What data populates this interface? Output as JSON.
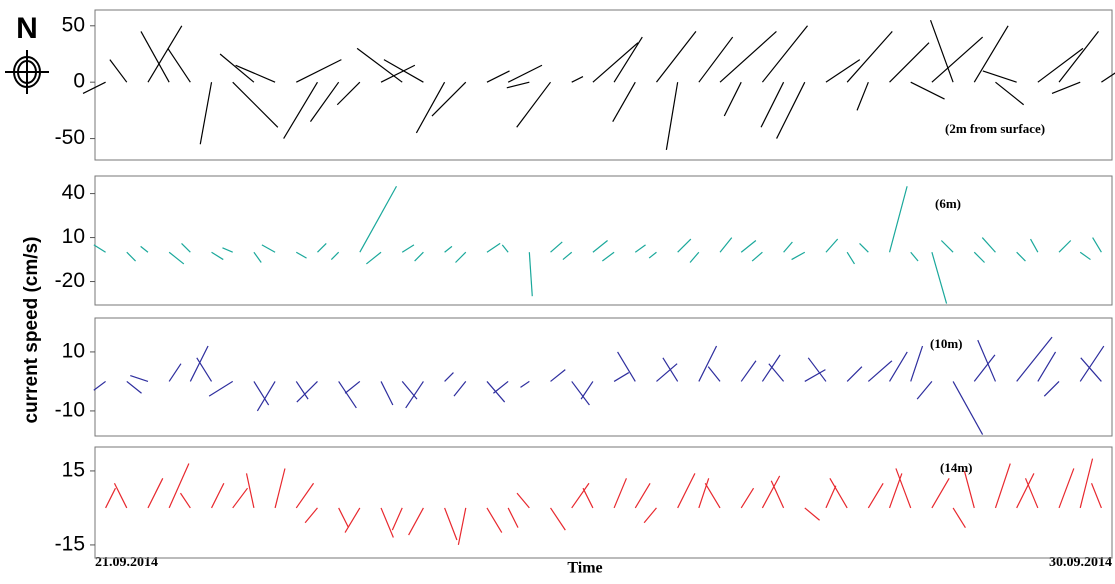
{
  "figure": {
    "compass": "N",
    "ylabel": "current speed (cm/s)",
    "xlabel": "Time",
    "x_start": "21.09.2014",
    "x_end": "30.09.2014"
  },
  "chart_data": [
    {
      "type": "stick",
      "annotation": "(2m from surface)",
      "ylim": [
        -69,
        64
      ],
      "yticks": [
        -50,
        0,
        50
      ],
      "series": [
        {
          "color": "#000000",
          "u": [
            -20,
            -15,
            30,
            -25,
            -20,
            -10,
            40,
            -30,
            -35,
            40,
            -30,
            -25,
            -20,
            30,
            -40,
            -35,
            -25,
            -30,
            20,
            30,
            -20,
            -30,
            10,
            40,
            25,
            -20,
            35,
            -10,
            30,
            50,
            -15,
            40,
            -20,
            -25,
            30,
            40,
            -10,
            35,
            30,
            45,
            -20,
            30,
            25,
            -30,
            40,
            35,
            -25,
            30
          ],
          "values": [
            -10,
            20,
            50,
            45,
            30,
            -55,
            -40,
            25,
            15,
            20,
            -50,
            -35,
            -20,
            15,
            30,
            20,
            -45,
            -30,
            10,
            15,
            -5,
            -40,
            5,
            35,
            40,
            -35,
            45,
            -60,
            40,
            45,
            -30,
            50,
            -40,
            -50,
            20,
            45,
            -25,
            35,
            -15,
            40,
            55,
            50,
            -20,
            10,
            30,
            45,
            -10,
            20
          ]
        }
      ]
    },
    {
      "type": "stick",
      "annotation": "(6m)",
      "ylim": [
        -36,
        52
      ],
      "yticks": [
        -20,
        10,
        40
      ],
      "series": [
        {
          "color": "#1aa89b",
          "u": [
            -8,
            6,
            -5,
            10,
            -6,
            8,
            -7,
            5,
            -9,
            7,
            6,
            -5,
            25,
            -10,
            8,
            -6,
            5,
            -7,
            9,
            -4,
            2,
            8,
            -6,
            10,
            -8,
            7,
            -5,
            9,
            -6,
            8,
            10,
            -7,
            6,
            -9,
            8,
            5,
            -6,
            12,
            5,
            10,
            -8,
            7,
            -9,
            6,
            -5,
            8,
            7,
            -6
          ],
          "values": [
            5,
            -6,
            4,
            -8,
            6,
            -5,
            3,
            -7,
            5,
            -4,
            6,
            -5,
            45,
            -8,
            5,
            -6,
            4,
            -7,
            6,
            5,
            -30,
            7,
            -5,
            8,
            -6,
            5,
            -4,
            9,
            -7,
            10,
            8,
            -6,
            7,
            -5,
            9,
            -8,
            6,
            45,
            -6,
            -35,
            8,
            -7,
            10,
            -6,
            9,
            8,
            -5,
            10
          ]
        }
      ]
    },
    {
      "type": "stick",
      "annotation": "(10m)",
      "ylim": [
        -18.5,
        21.5
      ],
      "yticks": [
        -10,
        10
      ],
      "series": [
        {
          "color": "#2e2e9e",
          "u": [
            -4,
            5,
            -6,
            4,
            6,
            -5,
            -8,
            5,
            -6,
            4,
            -7,
            6,
            -5,
            4,
            5,
            -6,
            3,
            -4,
            6,
            -5,
            -3,
            5,
            6,
            -4,
            5,
            -6,
            7,
            -5,
            6,
            -4,
            5,
            6,
            -5,
            7,
            -6,
            5,
            8,
            6,
            4,
            -5,
            10,
            7,
            -6,
            12,
            6,
            -5,
            8,
            -7
          ],
          "values": [
            -3,
            -4,
            2,
            6,
            12,
            8,
            -5,
            -8,
            -10,
            -6,
            -7,
            -9,
            -4,
            -8,
            -6,
            -9,
            3,
            -5,
            -7,
            -4,
            -2,
            4,
            -8,
            -6,
            3,
            10,
            6,
            8,
            12,
            5,
            7,
            9,
            6,
            4,
            8,
            5,
            7,
            10,
            12,
            -6,
            -18,
            9,
            14,
            15,
            10,
            -5,
            12,
            8
          ]
        }
      ]
    },
    {
      "type": "stick",
      "annotation": "(14m)",
      "ylim": [
        -20.3,
        24.7
      ],
      "yticks": [
        -15,
        15
      ],
      "series": [
        {
          "color": "#e8282e",
          "u": [
            4,
            -5,
            6,
            8,
            -4,
            5,
            6,
            -3,
            4,
            7,
            -5,
            4,
            -6,
            5,
            -4,
            -6,
            5,
            -3,
            6,
            4,
            -5,
            6,
            7,
            -4,
            5,
            6,
            -5,
            7,
            4,
            -6,
            5,
            7,
            -5,
            6,
            4,
            -7,
            6,
            5,
            -6,
            7,
            5,
            -4,
            6,
            7,
            -5,
            6,
            5,
            -4
          ],
          "values": [
            8,
            10,
            12,
            18,
            6,
            10,
            8,
            14,
            16,
            10,
            -6,
            -8,
            -10,
            -12,
            -9,
            -11,
            -13,
            -15,
            -10,
            -8,
            6,
            -9,
            10,
            8,
            12,
            10,
            -6,
            14,
            12,
            10,
            8,
            13,
            11,
            -5,
            9,
            12,
            10,
            14,
            16,
            12,
            -8,
            15,
            18,
            14,
            12,
            16,
            20,
            10
          ]
        }
      ]
    }
  ]
}
